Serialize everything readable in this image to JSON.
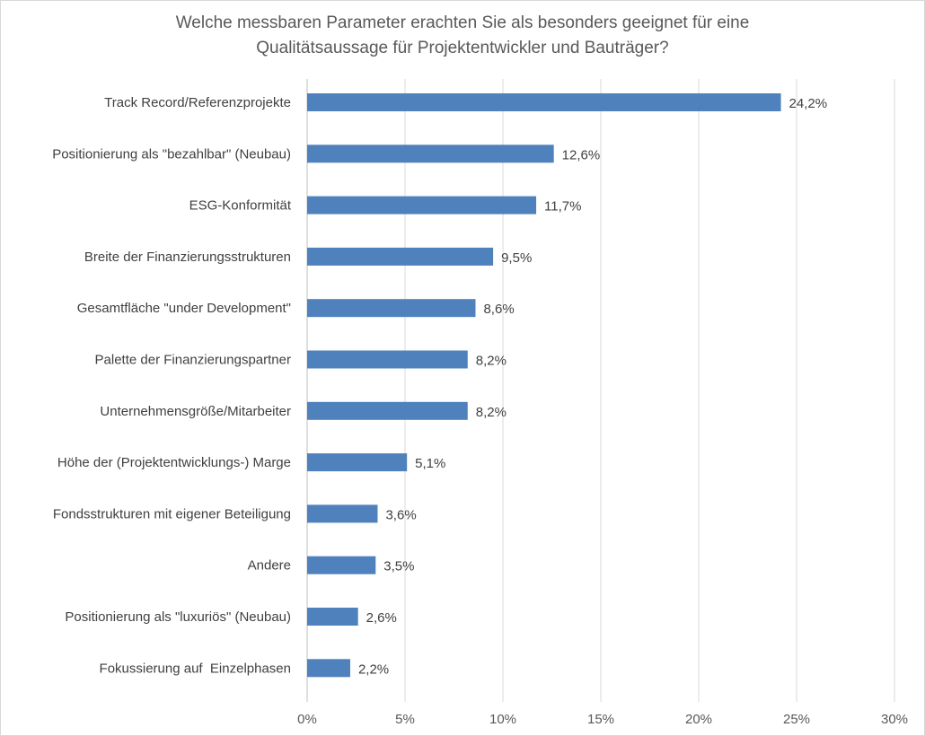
{
  "chart_data": {
    "type": "bar",
    "orientation": "horizontal",
    "title_lines": [
      "Welche messbaren Parameter erachten Sie als besonders geeignet für eine",
      "Qualitätsaussage für Projektentwickler und Bauträger?"
    ],
    "categories": [
      "Track Record/Referenzprojekte",
      "Positionierung als \"bezahlbar\" (Neubau)",
      "ESG-Konformität",
      "Breite der Finanzierungsstrukturen",
      "Gesamtfläche \"under Development\"",
      "Palette der Finanzierungspartner",
      "Unternehmensgröße/Mitarbeiter",
      "Höhe der (Projektentwicklungs-) Marge",
      "Fondsstrukturen mit eigener Beteiligung",
      "Andere",
      "Positionierung als \"luxuriös\" (Neubau)",
      "Fokussierung auf  Einzelphasen"
    ],
    "values": [
      24.2,
      12.6,
      11.7,
      9.5,
      8.6,
      8.2,
      8.2,
      5.1,
      3.6,
      3.5,
      2.6,
      2.2
    ],
    "value_labels": [
      "24,2%",
      "12,6%",
      "11,7%",
      "9,5%",
      "8,6%",
      "8,2%",
      "8,2%",
      "5,1%",
      "3,6%",
      "3,5%",
      "2,6%",
      "2,2%"
    ],
    "xlim": [
      0,
      30
    ],
    "xticks": [
      0,
      5,
      10,
      15,
      20,
      25,
      30
    ],
    "xtick_labels": [
      "0%",
      "5%",
      "10%",
      "15%",
      "20%",
      "25%",
      "30%"
    ],
    "xlabel": "",
    "ylabel": "",
    "grid": true,
    "legend": "none",
    "bar_color": "#4f81bd"
  }
}
